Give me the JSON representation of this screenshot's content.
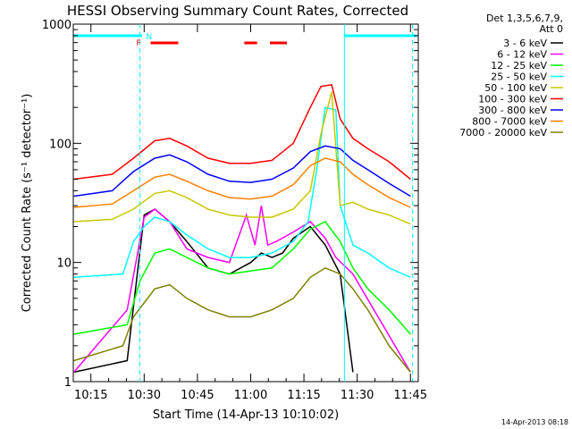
{
  "chart_data": {
    "type": "line",
    "title": "HESSI Observing Summary Count Rates, Corrected",
    "xlabel": "Start Time (14-Apr-13 10:10:02)",
    "ylabel": "Corrected Count Rate (s⁻¹ detector⁻¹)",
    "y_scale": "log",
    "ylim": [
      1,
      1000
    ],
    "xlim": [
      10.1672,
      11.7867
    ],
    "x_ticks": [
      10.25,
      10.5,
      10.75,
      11.0,
      11.25,
      11.5,
      11.75
    ],
    "x_tick_labels": [
      "10:15",
      "10:30",
      "10:45",
      "11:00",
      "11:15",
      "11:30",
      "11:45"
    ],
    "y_ticks": [
      1,
      10,
      100,
      1000
    ],
    "y_tick_labels": [
      "1",
      "10",
      "100",
      "1000"
    ],
    "grid": false,
    "legend_header": [
      "Det 1,3,5,6,7,9,",
      "Att 0"
    ],
    "legend_position": "outside-right",
    "series": [
      {
        "name": "3 - 6 keV",
        "color": "#000000",
        "x": [
          10.17,
          10.42,
          10.5,
          10.55,
          10.62,
          10.7,
          10.8,
          10.9,
          11.0,
          11.05,
          11.1,
          11.15,
          11.2,
          11.28,
          11.35,
          11.42,
          11.48
        ],
        "y": [
          1.2,
          1.5,
          25,
          28,
          22,
          15,
          9,
          8,
          10,
          12,
          11,
          12,
          16,
          20,
          14,
          8,
          1.2
        ]
      },
      {
        "name": "6 - 12 keV",
        "color": "#ff00ff",
        "x": [
          10.17,
          10.42,
          10.5,
          10.55,
          10.62,
          10.7,
          10.8,
          10.9,
          10.98,
          11.02,
          11.05,
          11.08,
          11.12,
          11.2,
          11.28,
          11.35,
          11.4,
          11.48,
          11.75
        ],
        "y": [
          1.2,
          4,
          24,
          28,
          22,
          13,
          11,
          10,
          25,
          14,
          30,
          14,
          15,
          18,
          22,
          16,
          11,
          8,
          1.2
        ]
      },
      {
        "name": "12 - 25 keV",
        "color": "#00ff00",
        "x": [
          10.17,
          10.42,
          10.48,
          10.55,
          10.62,
          10.7,
          10.8,
          10.9,
          11.0,
          11.1,
          11.2,
          11.28,
          11.35,
          11.42,
          11.48,
          11.55,
          11.65,
          11.75
        ],
        "y": [
          2.5,
          3,
          7,
          12,
          13,
          11,
          9,
          8,
          8.5,
          9,
          13,
          19,
          22,
          15,
          9,
          6,
          4,
          2.5
        ]
      },
      {
        "name": "25 - 50 keV",
        "color": "#00ffff",
        "x": [
          10.17,
          10.4,
          10.45,
          10.5,
          10.55,
          10.62,
          10.7,
          10.8,
          10.9,
          11.0,
          11.1,
          11.2,
          11.27,
          11.31,
          11.35,
          11.4,
          11.42,
          11.48,
          11.55,
          11.65,
          11.75
        ],
        "y": [
          7.5,
          8,
          15,
          20,
          24,
          22,
          17,
          13,
          11,
          11,
          12,
          15,
          22,
          60,
          200,
          190,
          30,
          14,
          12,
          9,
          7.5
        ]
      },
      {
        "name": "50 - 100 keV",
        "color": "#c8c800",
        "x": [
          10.17,
          10.35,
          10.45,
          10.55,
          10.62,
          10.7,
          10.8,
          10.9,
          11.0,
          11.1,
          11.2,
          11.28,
          11.33,
          11.38,
          11.42,
          11.48,
          11.55,
          11.65,
          11.75
        ],
        "y": [
          22,
          23,
          28,
          38,
          40,
          35,
          28,
          25,
          24,
          24,
          28,
          40,
          120,
          270,
          30,
          32,
          28,
          25,
          21
        ]
      },
      {
        "name": "100 - 300 keV",
        "color": "#ff0000",
        "x": [
          10.17,
          10.35,
          10.45,
          10.55,
          10.62,
          10.7,
          10.8,
          10.9,
          11.0,
          11.1,
          11.2,
          11.28,
          11.33,
          11.38,
          11.42,
          11.48,
          11.55,
          11.65,
          11.75
        ],
        "y": [
          50,
          55,
          75,
          105,
          110,
          95,
          75,
          68,
          68,
          72,
          100,
          200,
          300,
          310,
          160,
          110,
          90,
          70,
          50
        ]
      },
      {
        "name": "300 - 800 keV",
        "color": "#0000ff",
        "x": [
          10.17,
          10.35,
          10.45,
          10.55,
          10.62,
          10.7,
          10.8,
          10.9,
          11.0,
          11.1,
          11.2,
          11.28,
          11.35,
          11.42,
          11.48,
          11.55,
          11.65,
          11.75
        ],
        "y": [
          36,
          40,
          58,
          75,
          80,
          70,
          55,
          48,
          47,
          50,
          62,
          85,
          95,
          90,
          72,
          60,
          46,
          36
        ]
      },
      {
        "name": "800 - 7000 keV",
        "color": "#ff8000",
        "x": [
          10.17,
          10.35,
          10.45,
          10.55,
          10.62,
          10.7,
          10.8,
          10.9,
          11.0,
          11.1,
          11.2,
          11.28,
          11.35,
          11.42,
          11.48,
          11.55,
          11.65,
          11.75
        ],
        "y": [
          29,
          31,
          40,
          52,
          55,
          48,
          40,
          35,
          34,
          36,
          45,
          65,
          75,
          70,
          55,
          45,
          35,
          29
        ]
      },
      {
        "name": "7000 - 20000 keV",
        "color": "#808000",
        "x": [
          10.17,
          10.4,
          10.45,
          10.55,
          10.62,
          10.7,
          10.8,
          10.9,
          11.0,
          11.1,
          11.2,
          11.28,
          11.35,
          11.42,
          11.48,
          11.55,
          11.65,
          11.75
        ],
        "y": [
          1.5,
          2,
          3.5,
          6,
          6.5,
          5,
          4,
          3.5,
          3.5,
          4,
          5,
          7.5,
          9,
          8,
          6,
          4,
          2,
          1.2
        ]
      }
    ],
    "annotations": [
      {
        "text": "N",
        "x": 10.5,
        "color": "#00ffff"
      },
      {
        "text": "F",
        "x": 10.48,
        "color": "#ff0000"
      }
    ],
    "status_bars": [
      {
        "color": "#00ffff",
        "x_ranges": [
          [
            10.17,
            10.49
          ],
          [
            11.44,
            11.78
          ]
        ]
      },
      {
        "color": "#ff0000",
        "x_ranges": [
          [
            10.53,
            10.66
          ],
          [
            10.97,
            11.03
          ],
          [
            11.09,
            11.17
          ]
        ]
      }
    ],
    "vertical_lines": [
      {
        "x": 10.48,
        "color": "#00ffff",
        "style": "dashed"
      },
      {
        "x": 11.44,
        "color": "#00ffff",
        "style": "solid"
      },
      {
        "x": 11.76,
        "color": "#00ffff",
        "style": "dashed"
      }
    ]
  },
  "timestamp": "14-Apr-2013 08:18"
}
